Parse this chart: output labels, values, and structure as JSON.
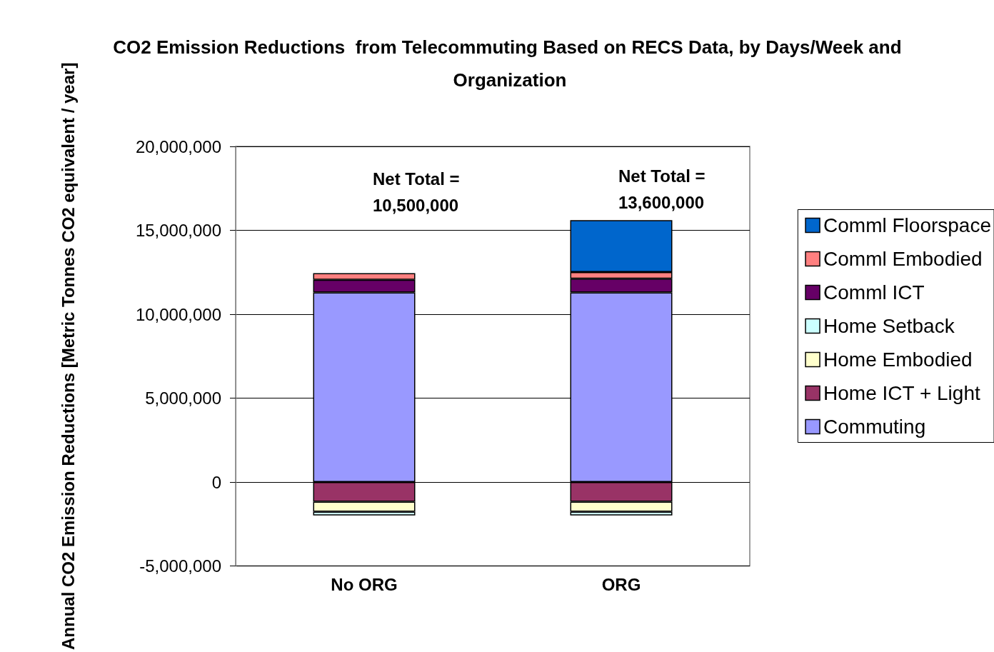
{
  "chart_data": {
    "type": "bar",
    "stacked": true,
    "title": "CO2 Emission Reductions  from Telecommuting Based on RECS Data, by Days/Week and Organization",
    "ylabel": "Annual CO2 Emission Reductions [Metric Tonnes CO2 equivalent / year]",
    "categories": [
      "No ORG",
      "ORG"
    ],
    "series": [
      {
        "name": "Commuting",
        "color": "#9999ff",
        "values": [
          11300000,
          11300000
        ]
      },
      {
        "name": "Home ICT + Light",
        "color": "#993366",
        "values": [
          -1170000,
          -1170000
        ]
      },
      {
        "name": "Home Embodied",
        "color": "#ffffcc",
        "values": [
          -590000,
          -590000
        ]
      },
      {
        "name": "Home Setback",
        "color": "#ccffff",
        "values": [
          -230000,
          -230000
        ]
      },
      {
        "name": "Comml ICT",
        "color": "#660066",
        "values": [
          760000,
          820000
        ]
      },
      {
        "name": "Comml Embodied",
        "color": "#ff8080",
        "values": [
          390000,
          390000
        ]
      },
      {
        "name": "Comml Floorspace",
        "color": "#0066cc",
        "values": [
          null,
          3100000
        ]
      }
    ],
    "ylim": [
      -5000000,
      20000000
    ],
    "yticks": [
      {
        "value": -5000000,
        "label": "-5,000,000"
      },
      {
        "value": 0,
        "label": "0"
      },
      {
        "value": 5000000,
        "label": "5,000,000"
      },
      {
        "value": 10000000,
        "label": "10,000,000"
      },
      {
        "value": 15000000,
        "label": "15,000,000"
      },
      {
        "value": 20000000,
        "label": "20,000,000"
      }
    ],
    "annotations": [
      "Net Total =\n10,500,000",
      "Net Total =\n13,600,000"
    ],
    "grid": "y",
    "legend": "right"
  }
}
